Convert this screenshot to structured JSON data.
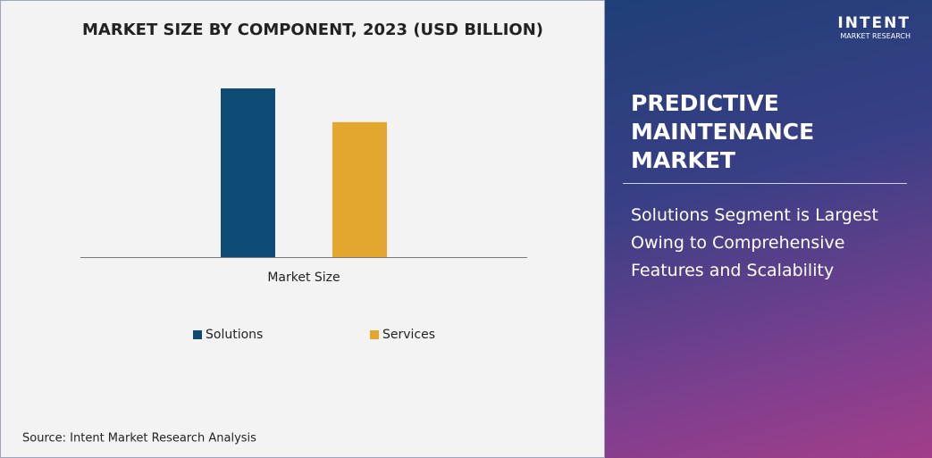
{
  "chart_data": {
    "type": "bar",
    "title": "MARKET SIZE BY COMPONENT, 2023 (USD BILLION)",
    "categories": [
      "Market Size"
    ],
    "series": [
      {
        "name": "Solutions",
        "color": "#0f4c75",
        "values": [
          10
        ]
      },
      {
        "name": "Services",
        "color": "#e3a72f",
        "values": [
          8
        ]
      }
    ]
  },
  "source": "Source: Intent Market Research Analysis",
  "logo": {
    "name": "INTENT",
    "tagline": "MARKET RESEARCH"
  },
  "panel": {
    "title": "PREDICTIVE MAINTENANCE MARKET",
    "subtitle": "Solutions Segment is Largest Owing to Comprehensive Features and Scalability"
  }
}
